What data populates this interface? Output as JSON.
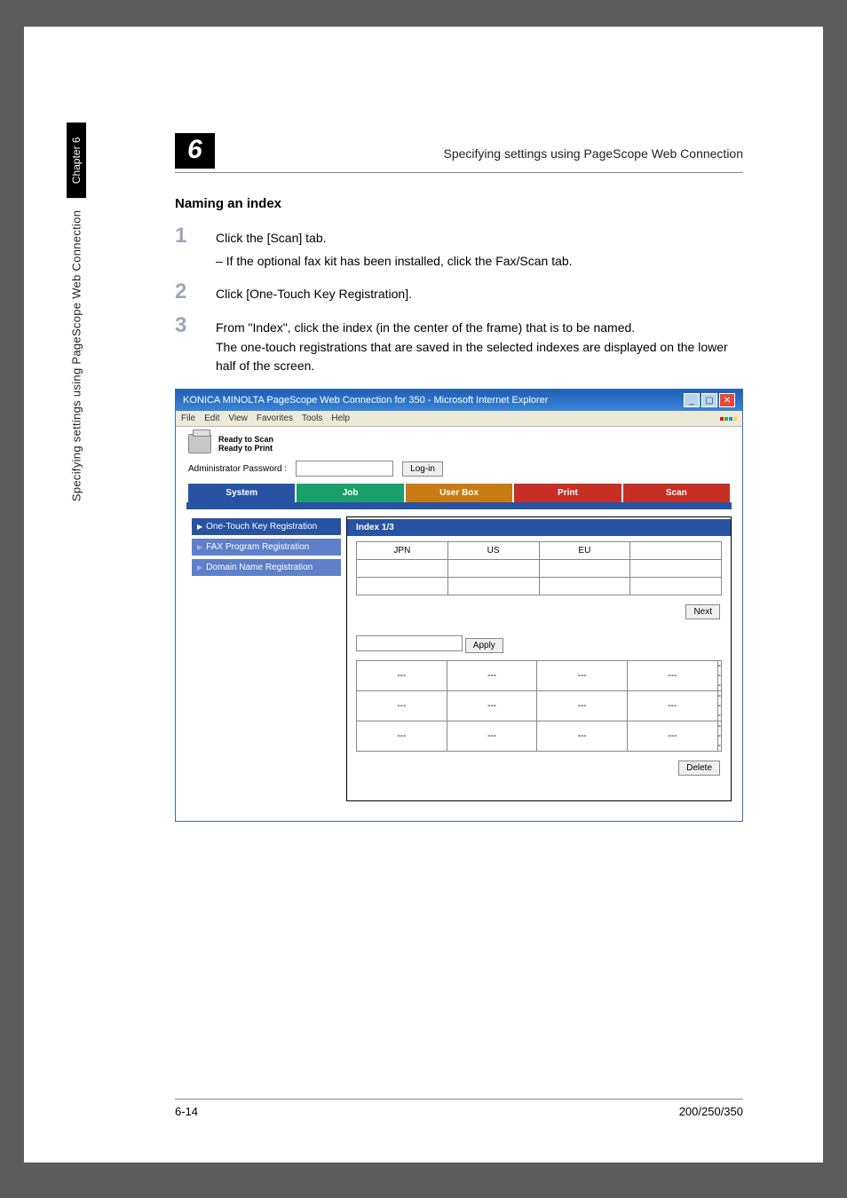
{
  "side": {
    "chapter": "Chapter 6",
    "vtext": "Specifying settings using PageScope Web Connection"
  },
  "header": {
    "chapter_num": "6",
    "title": "Specifying settings using PageScope Web Connection"
  },
  "section_title": "Naming an index",
  "steps": [
    {
      "num": "1",
      "text": "Click the [Scan] tab.",
      "sub": "If the optional fax kit has been installed, click the Fax/Scan tab."
    },
    {
      "num": "2",
      "text": "Click [One-Touch Key Registration]."
    },
    {
      "num": "3",
      "text": "From \"Index\", click the index (in the center of the frame) that is to be named.",
      "extra": "The one-touch registrations that are saved in the selected indexes are displayed on the lower half of the screen."
    }
  ],
  "win": {
    "title": "KONICA MINOLTA PageScope Web Connection for 350 - Microsoft Internet Explorer",
    "menus": [
      "File",
      "Edit",
      "View",
      "Favorites",
      "Tools",
      "Help"
    ],
    "status": {
      "line1": "Ready to Scan",
      "line2": "Ready to Print"
    },
    "admin_label": "Administrator Password :",
    "login": "Log-in",
    "tabs": [
      {
        "label": "System",
        "bg": "#2853a3"
      },
      {
        "label": "Job",
        "bg": "#1aa06c"
      },
      {
        "label": "User Box",
        "bg": "#c67b14"
      },
      {
        "label": "Print",
        "bg": "#c62f26"
      },
      {
        "label": "Scan",
        "bg": "#c62f26"
      }
    ],
    "sidebar": [
      {
        "label": "One-Touch Key Registration",
        "bg": "#2853a3",
        "tri": "▶",
        "tri_color": "#ffffff"
      },
      {
        "label": "FAX Program Registration",
        "bg": "#5e7fc9",
        "tri": "▶",
        "tri_color": "#9bb3e2"
      },
      {
        "label": "Domain Name Registration",
        "bg": "#5e7fc9",
        "tri": "▶",
        "tri_color": "#9bb3e2"
      }
    ],
    "index_label": "Index 1/3",
    "index_cells": [
      "JPN",
      "US",
      "EU",
      ""
    ],
    "next": "Next",
    "apply": "Apply",
    "dash_rows": 3,
    "delete": "Delete"
  },
  "footer": {
    "left": "6-14",
    "right": "200/250/350"
  },
  "colors": {
    "page_bg": "#ffffff",
    "body_bg": "#5c5c5c",
    "step_num": "#9aa8b8",
    "win_bar1": "#1e5fb4",
    "win_bar2": "#3b84d8",
    "tabbar_top": "#2853a3"
  }
}
